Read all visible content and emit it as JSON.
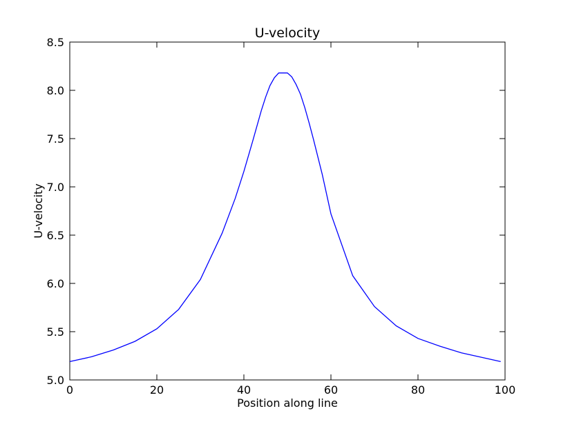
{
  "chart_data": {
    "type": "line",
    "title": "U-velocity",
    "xlabel": "Position along line",
    "ylabel": "U-velocity",
    "xlim": [
      0,
      100
    ],
    "ylim": [
      5.0,
      8.5
    ],
    "xticks": [
      0,
      20,
      40,
      60,
      80,
      100
    ],
    "yticks": [
      5.0,
      5.5,
      6.0,
      6.5,
      7.0,
      7.5,
      8.0,
      8.5
    ],
    "xtick_labels": [
      "0",
      "20",
      "40",
      "60",
      "80",
      "100"
    ],
    "ytick_labels": [
      "5.0",
      "5.5",
      "6.0",
      "6.5",
      "7.0",
      "7.5",
      "8.0",
      "8.5"
    ],
    "grid": false,
    "legend": "none",
    "line_color": "#0000ff",
    "series": [
      {
        "x": [
          0,
          5,
          10,
          15,
          20,
          25,
          30,
          35,
          38,
          40,
          42,
          44,
          45,
          46,
          47,
          48,
          49,
          50,
          51,
          52,
          53,
          54,
          55,
          56,
          58,
          60,
          65,
          70,
          75,
          80,
          85,
          90,
          95,
          99
        ],
        "y": [
          5.19,
          5.24,
          5.31,
          5.4,
          5.53,
          5.73,
          6.04,
          6.52,
          6.88,
          7.16,
          7.47,
          7.79,
          7.93,
          8.05,
          8.13,
          8.18,
          8.18,
          8.18,
          8.14,
          8.06,
          7.96,
          7.82,
          7.66,
          7.49,
          7.13,
          6.72,
          6.08,
          5.76,
          5.56,
          5.43,
          5.35,
          5.28,
          5.23,
          5.19
        ]
      }
    ]
  }
}
